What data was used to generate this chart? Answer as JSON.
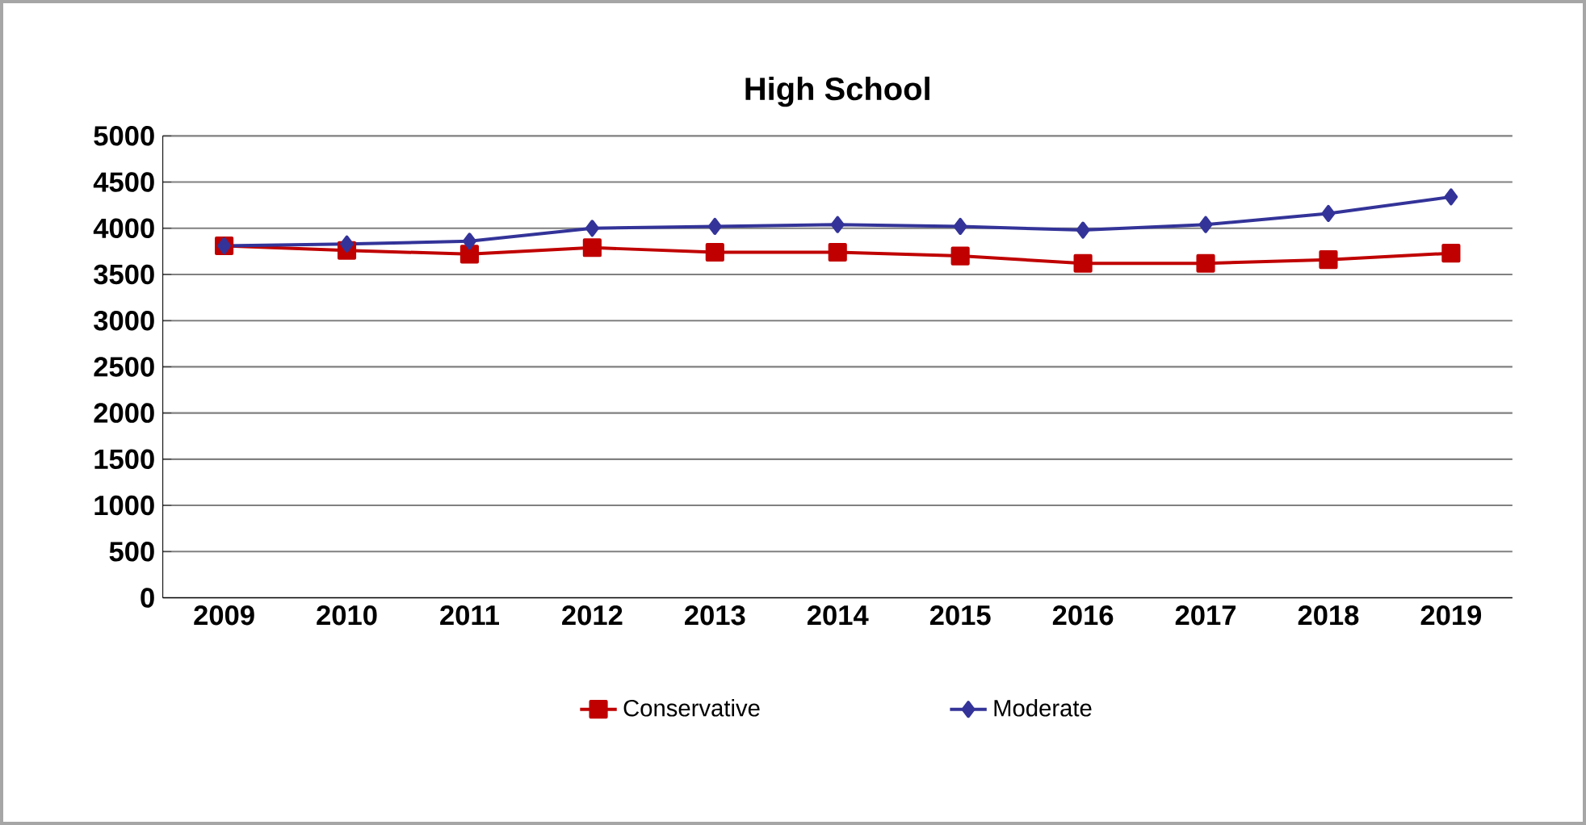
{
  "chart_data": {
    "type": "line",
    "title": "High School",
    "categories": [
      "2009",
      "2010",
      "2011",
      "2012",
      "2013",
      "2014",
      "2015",
      "2016",
      "2017",
      "2018",
      "2019"
    ],
    "series": [
      {
        "name": "Conservative",
        "color": "#c00000",
        "marker": "square",
        "values": [
          3810,
          3760,
          3720,
          3790,
          3740,
          3740,
          3700,
          3620,
          3620,
          3660,
          3730
        ]
      },
      {
        "name": "Moderate",
        "color": "#333399",
        "marker": "diamond",
        "values": [
          3810,
          3830,
          3860,
          4000,
          4020,
          4040,
          4020,
          3980,
          4040,
          4160,
          4340
        ]
      }
    ],
    "ylim": [
      0,
      5000
    ],
    "yticks": [
      0,
      500,
      1000,
      1500,
      2000,
      2500,
      3000,
      3500,
      4000,
      4500,
      5000
    ],
    "grid": "y",
    "legend": "bottom"
  }
}
